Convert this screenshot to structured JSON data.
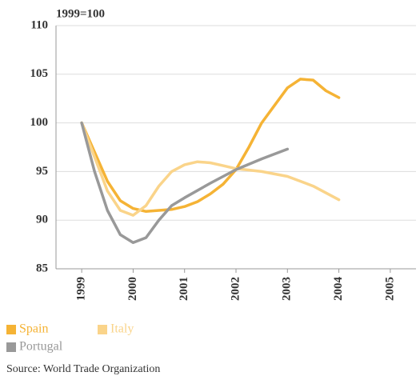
{
  "chart_data": {
    "type": "line",
    "title": "1999=100",
    "source": "Source: World Trade Organization",
    "xlim": [
      1998.5,
      2005.5
    ],
    "xticks": [
      1999,
      2000,
      2001,
      2002,
      2003,
      2004,
      2005
    ],
    "ylim": [
      85,
      110
    ],
    "yticks": [
      85,
      90,
      95,
      100,
      105,
      110
    ],
    "grid": true,
    "legend": "bottom",
    "series": [
      {
        "name": "Spain",
        "color": "#f5b335",
        "x": [
          1999,
          1999.25,
          1999.5,
          1999.75,
          2000,
          2000.25,
          2000.5,
          2000.75,
          2001,
          2001.25,
          2001.5,
          2001.75,
          2002,
          2002.25,
          2002.5,
          2002.75,
          2003,
          2003.25,
          2003.5,
          2003.75,
          2004
        ],
        "values": [
          100,
          97,
          94,
          92,
          91.2,
          90.9,
          91,
          91.1,
          91.4,
          91.9,
          92.7,
          93.7,
          95.2,
          97.5,
          100,
          101.8,
          103.6,
          104.5,
          104.4,
          103.3,
          102.6
        ]
      },
      {
        "name": "Italy",
        "color": "#fad48a",
        "x": [
          1999,
          1999.25,
          1999.5,
          1999.75,
          2000,
          2000.25,
          2000.5,
          2000.75,
          2001,
          2001.25,
          2001.5,
          2001.75,
          2002,
          2002.5,
          2003,
          2003.5,
          2004
        ],
        "values": [
          100,
          96.5,
          93,
          91,
          90.5,
          91.5,
          93.5,
          95,
          95.7,
          96,
          95.9,
          95.6,
          95.3,
          95,
          94.5,
          93.5,
          92.1
        ]
      },
      {
        "name": "Portugal",
        "color": "#999999",
        "x": [
          1999,
          1999.25,
          1999.5,
          1999.75,
          2000,
          2000.25,
          2000.5,
          2000.75,
          2001,
          2001.5,
          2002,
          2002.5,
          2003
        ],
        "values": [
          100,
          95,
          91,
          88.5,
          87.7,
          88.2,
          90,
          91.5,
          92.3,
          93.8,
          95.2,
          96.3,
          97.3
        ]
      }
    ]
  }
}
